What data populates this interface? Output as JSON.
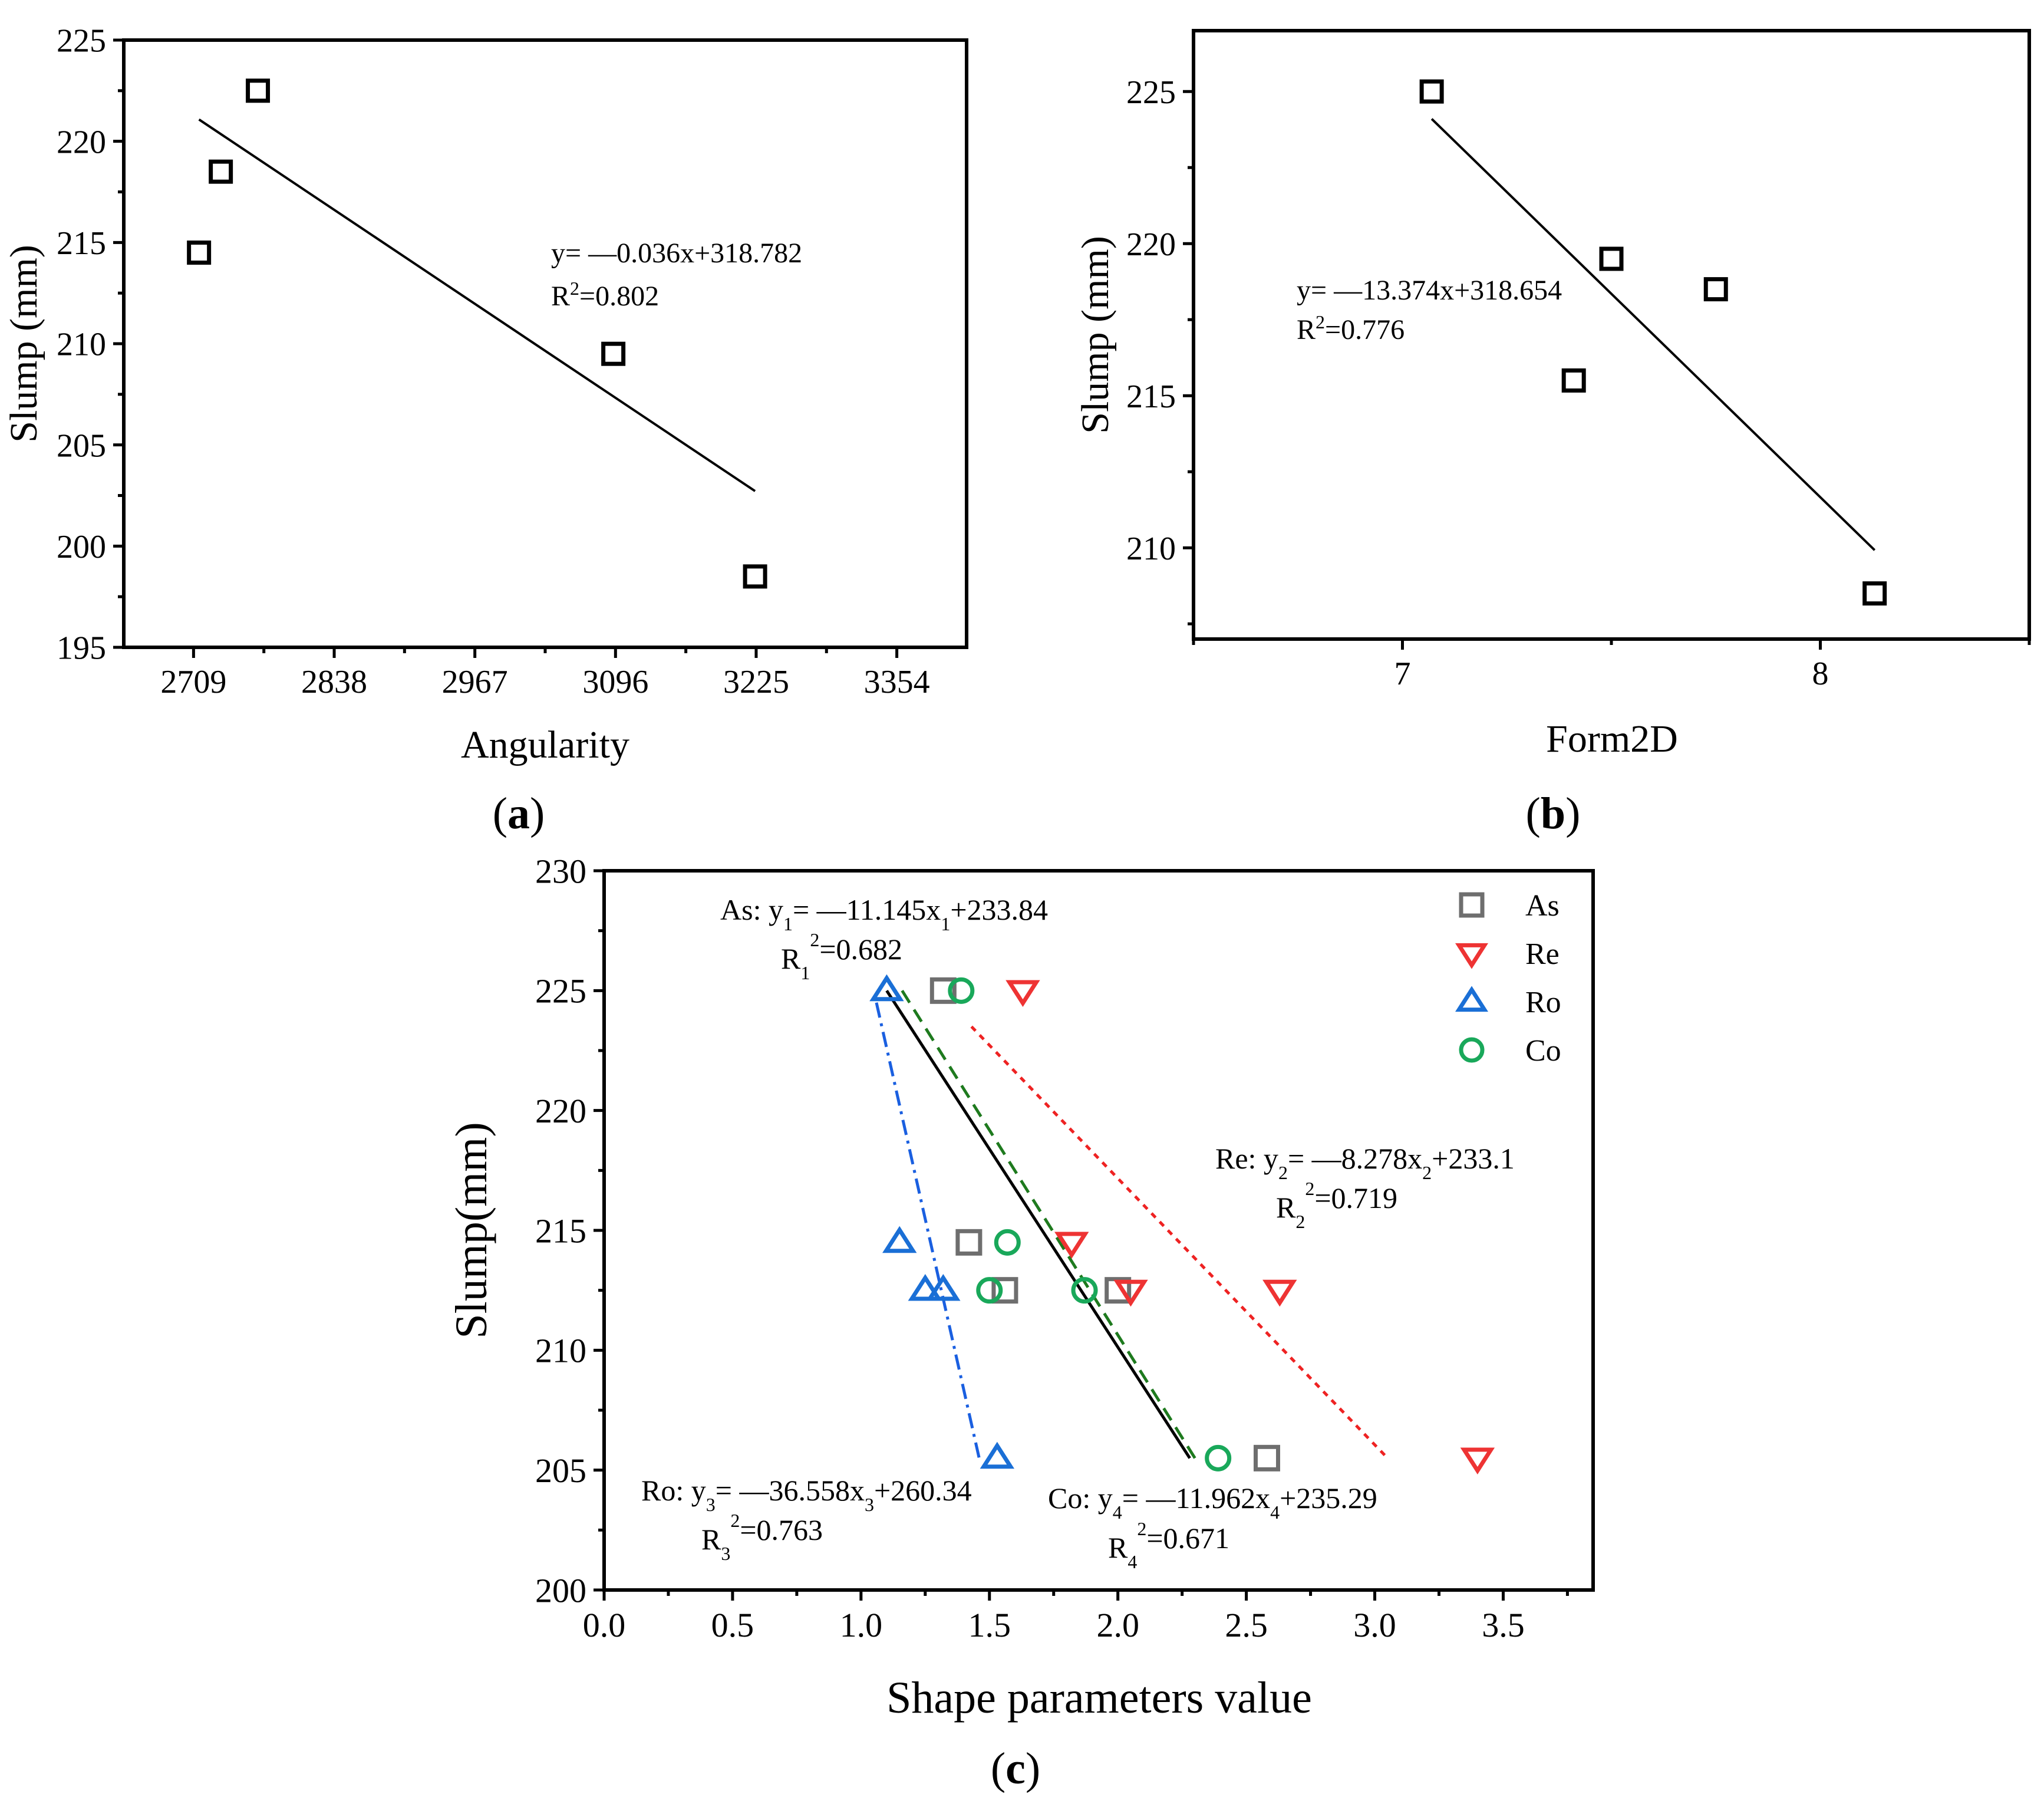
{
  "chart_data": [
    {
      "type": "scatter",
      "panel_label": "a",
      "xlabel": "Angularity",
      "ylabel": "Slump (mm)",
      "xlim": [
        2645,
        3418
      ],
      "ylim": [
        195,
        225
      ],
      "xticks": [
        2709,
        2838,
        2967,
        3096,
        3225,
        3354
      ],
      "yticks": [
        195,
        200,
        205,
        210,
        215,
        220,
        225
      ],
      "points": [
        {
          "x": 2714,
          "y": 214.5
        },
        {
          "x": 2734,
          "y": 218.5
        },
        {
          "x": 2768,
          "y": 222.5
        },
        {
          "x": 3094,
          "y": 209.5
        },
        {
          "x": 3224,
          "y": 198.5
        }
      ],
      "fit": {
        "slope": -0.036,
        "intercept": 318.782,
        "x0": 2714,
        "x1": 3224
      },
      "equation": "y= —0.036x+318.782",
      "r2_label": "R",
      "r2_value": "=0.802"
    },
    {
      "type": "scatter",
      "panel_label": "b",
      "xlabel": "Form2D",
      "ylabel": "Slump (mm)",
      "xlim": [
        6.5,
        8.5
      ],
      "ylim": [
        207,
        227
      ],
      "xticks": [
        7,
        8
      ],
      "yticks": [
        210,
        215,
        220,
        225
      ],
      "points": [
        {
          "x": 7.07,
          "y": 225
        },
        {
          "x": 7.41,
          "y": 215.5
        },
        {
          "x": 7.5,
          "y": 219.5
        },
        {
          "x": 7.75,
          "y": 218.5
        },
        {
          "x": 8.13,
          "y": 208.5
        }
      ],
      "fit": {
        "slope": -13.374,
        "intercept": 318.654,
        "x0": 7.07,
        "x1": 8.13
      },
      "equation": "y= —13.374x+318.654",
      "r2_label": "R",
      "r2_value": "=0.776"
    },
    {
      "type": "scatter",
      "panel_label": "c",
      "xlabel": "Shape parameters value",
      "ylabel": "Slump(mm)",
      "xlim": [
        0,
        3.85
      ],
      "ylim": [
        200,
        230
      ],
      "xticks": [
        "0.0",
        "0.5",
        "1.0",
        "1.5",
        "2.0",
        "2.5",
        "3.0",
        "3.5"
      ],
      "yticks": [
        200,
        205,
        210,
        215,
        220,
        225,
        230
      ],
      "legend_position": "top-right",
      "series": [
        {
          "name": "As",
          "marker": "square",
          "color": "#6e6e6e",
          "points": [
            {
              "x": 1.32,
              "y": 225
            },
            {
              "x": 1.42,
              "y": 214.5
            },
            {
              "x": 1.56,
              "y": 212.5
            },
            {
              "x": 2.0,
              "y": 212.5
            },
            {
              "x": 2.58,
              "y": 205.5
            }
          ],
          "fit": {
            "x0": 1.1,
            "x1": 2.28,
            "y0": 225,
            "y1": 205.5,
            "color": "#000000",
            "style": "solid"
          },
          "eq_prefix": "As: y",
          "eq_sub": "1",
          "eq_mid": "= —11.145x",
          "eq_sub2": "1",
          "eq_suffix": "+233.84",
          "r_label": "R",
          "r_sub": "1",
          "r_sup": "2",
          "r_value": "=0.682"
        },
        {
          "name": "Re",
          "marker": "triangle-down",
          "color": "#ee3333",
          "points": [
            {
              "x": 1.63,
              "y": 225
            },
            {
              "x": 1.82,
              "y": 214.5
            },
            {
              "x": 2.05,
              "y": 212.5
            },
            {
              "x": 2.63,
              "y": 212.5
            },
            {
              "x": 3.4,
              "y": 205.5
            }
          ],
          "fit": {
            "x0": 1.43,
            "x1": 3.05,
            "y0": 223.5,
            "y1": 205.5,
            "color": "#ee2222",
            "style": "dotted"
          },
          "eq_prefix": "Re: y",
          "eq_sub": "2",
          "eq_mid": "= —8.278x",
          "eq_sub2": "2",
          "eq_suffix": "+233.1",
          "r_label": "R",
          "r_sub": "2",
          "r_sup": "2",
          "r_value": "=0.719"
        },
        {
          "name": "Ro",
          "marker": "triangle-up",
          "color": "#1a6fd6",
          "points": [
            {
              "x": 1.1,
              "y": 225
            },
            {
              "x": 1.15,
              "y": 214.5
            },
            {
              "x": 1.25,
              "y": 212.5
            },
            {
              "x": 1.32,
              "y": 212.5
            },
            {
              "x": 1.53,
              "y": 205.5
            }
          ],
          "fit": {
            "x0": 1.06,
            "x1": 1.46,
            "y0": 224.5,
            "y1": 205.5,
            "color": "#1a5fe0",
            "style": "dashdot"
          },
          "eq_prefix": "Ro: y",
          "eq_sub": "3",
          "eq_mid": "= —36.558x",
          "eq_sub2": "3",
          "eq_suffix": "+260.34",
          "r_label": "R",
          "r_sub": "3",
          "r_sup": "2",
          "r_value": "=0.763"
        },
        {
          "name": "Co",
          "marker": "circle",
          "color": "#19a85a",
          "points": [
            {
              "x": 1.39,
              "y": 225
            },
            {
              "x": 1.57,
              "y": 214.5
            },
            {
              "x": 1.5,
              "y": 212.5
            },
            {
              "x": 1.87,
              "y": 212.5
            },
            {
              "x": 2.39,
              "y": 205.5
            }
          ],
          "fit": {
            "x0": 1.16,
            "x1": 2.3,
            "y0": 225,
            "y1": 205.5,
            "color": "#1e7a1e",
            "style": "dashed"
          },
          "eq_prefix": "Co: y",
          "eq_sub": "4",
          "eq_mid": "= —11.962x",
          "eq_sub2": "4",
          "eq_suffix": "+235.29",
          "r_label": "R",
          "r_sub": "4",
          "r_sup": "2",
          "r_value": "=0.671"
        }
      ]
    }
  ]
}
